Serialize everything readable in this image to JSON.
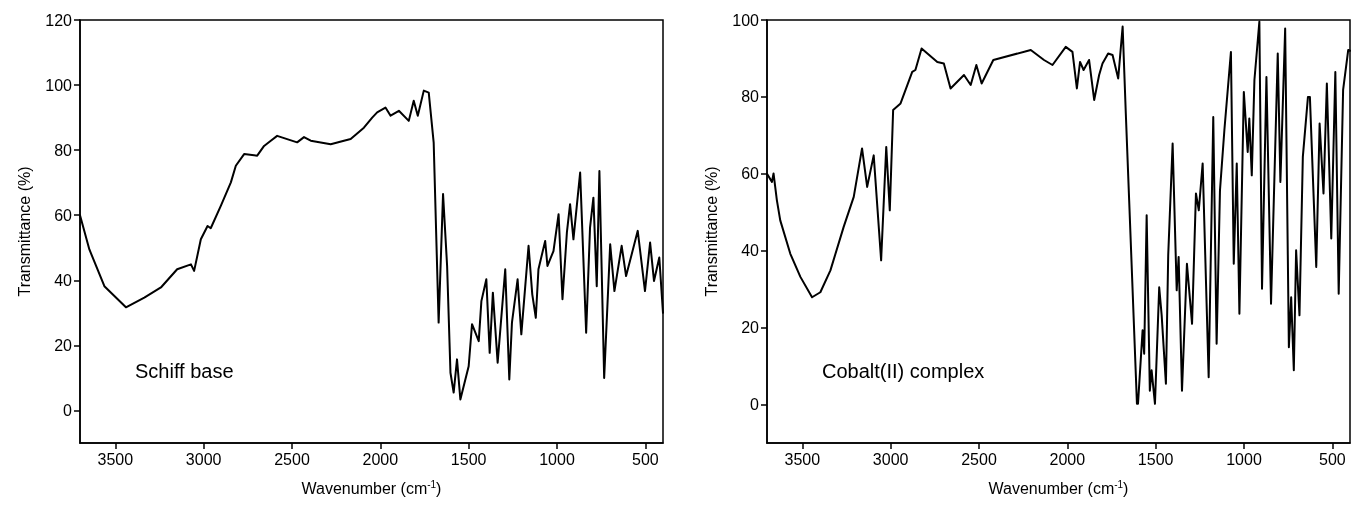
{
  "chart_data": [
    {
      "type": "line",
      "xlabel": "Wavenumber (cm$^{-1}$)",
      "ylabel": "Transmittance (%)",
      "annotations": [
        "Schiff base"
      ],
      "xlim": [
        3700,
        400
      ],
      "xticks": [
        3500,
        3000,
        2500,
        2000,
        1500,
        1000,
        500
      ],
      "ylim": [
        -10,
        120
      ],
      "yticks": [
        0,
        20,
        40,
        60,
        80,
        100,
        120
      ],
      "grid": false,
      "marker": "none",
      "line_style": "solid",
      "x": [
        3700,
        3647,
        3562,
        3440,
        3336,
        3242,
        3150,
        3072,
        3054,
        3016,
        2978,
        2960,
        2903,
        2846,
        2818,
        2771,
        2697,
        2658,
        2620,
        2584,
        2471,
        2432,
        2394,
        2281,
        2206,
        2168,
        2093,
        2046,
        2018,
        1971,
        1942,
        1895,
        1839,
        1811,
        1788,
        1754,
        1726,
        1698,
        1670,
        1645,
        1622,
        1603,
        1585,
        1566,
        1547,
        1500,
        1481,
        1443,
        1428,
        1400,
        1381,
        1363,
        1336,
        1293,
        1270,
        1255,
        1223,
        1202,
        1161,
        1140,
        1120,
        1105,
        1067,
        1054,
        1020,
        991,
        969,
        944,
        926,
        907,
        869,
        835,
        813,
        794,
        775,
        760,
        733,
        699,
        675,
        634,
        609,
        543,
        502,
        473,
        451,
        421,
        400
      ],
      "series": [
        {
          "color": "#000000",
          "values": [
            60,
            49.5,
            38.2,
            31.7,
            34.7,
            37.8,
            43.4,
            44.9,
            42.9,
            52.6,
            56.7,
            56,
            62.9,
            70.1,
            75.2,
            78.8,
            78.3,
            81.3,
            82.9,
            84.4,
            82.4,
            84,
            82.9,
            81.8,
            82.9,
            83.4,
            86.9,
            90,
            91.6,
            93.1,
            90.6,
            92.1,
            89,
            95.2,
            90.6,
            98.3,
            97.7,
            82.3,
            27,
            66.5,
            44.4,
            11.6,
            5.5,
            15.7,
            3.4,
            13.6,
            26.5,
            21.3,
            33.6,
            40.3,
            17.7,
            36.2,
            14.7,
            43.4,
            9.5,
            27,
            40.3,
            23.4,
            50.6,
            35.7,
            28.5,
            43.4,
            52.1,
            44.4,
            49,
            60.3,
            34.2,
            54.7,
            63.4,
            52.6,
            73.1,
            23.9,
            56.2,
            65.4,
            38.2,
            73.6,
            10,
            51.1,
            36.7,
            50.6,
            41.3,
            55.2,
            36.7,
            51.6,
            39.8,
            47,
            30
          ]
        }
      ]
    },
    {
      "type": "line",
      "xlabel": "Wavenumber (cm$^{-1}$)",
      "ylabel": "Transmittance (%)",
      "annotations": [
        "Cobalt(II) complex"
      ],
      "xlim": [
        3700,
        400
      ],
      "xticks": [
        3500,
        3000,
        2500,
        2000,
        1500,
        1000,
        500
      ],
      "ylim": [
        -10,
        100
      ],
      "yticks": [
        0,
        20,
        40,
        60,
        80,
        100
      ],
      "grid": false,
      "marker": "none",
      "line_style": "solid",
      "x": [
        3700,
        3672,
        3663,
        3644,
        3625,
        3568,
        3511,
        3445,
        3398,
        3341,
        3266,
        3209,
        3162,
        3133,
        3096,
        3054,
        3025,
        3005,
        2986,
        2944,
        2878,
        2860,
        2825,
        2736,
        2699,
        2661,
        2585,
        2547,
        2515,
        2485,
        2419,
        2207,
        2132,
        2084,
        2009,
        1971,
        1946,
        1928,
        1908,
        1877,
        1848,
        1820,
        1801,
        1769,
        1744,
        1712,
        1687,
        1669,
        1650,
        1606,
        1600,
        1574,
        1565,
        1551,
        1533,
        1523,
        1504,
        1480,
        1466,
        1442,
        1429,
        1404,
        1381,
        1370,
        1351,
        1323,
        1294,
        1272,
        1256,
        1234,
        1200,
        1174,
        1155,
        1136,
        1111,
        1074,
        1058,
        1041,
        1026,
        1001,
        979,
        970,
        956,
        941,
        913,
        898,
        873,
        847,
        809,
        794,
        767,
        746,
        733,
        718,
        705,
        686,
        667,
        638,
        627,
        591,
        572,
        550,
        531,
        506,
        483,
        464,
        439,
        410,
        400
      ],
      "series": [
        {
          "color": "#000000",
          "values": [
            60,
            57.9,
            60.1,
            53.1,
            47.9,
            39.2,
            33.2,
            27.9,
            29.2,
            34.9,
            46.2,
            54,
            66.6,
            56.6,
            64.8,
            37.5,
            67,
            50.5,
            76.6,
            78.3,
            86.5,
            87,
            92.6,
            89.1,
            88.7,
            82.2,
            85.7,
            83.1,
            88.3,
            83.5,
            89.6,
            92.2,
            89.6,
            88.3,
            93,
            91.7,
            82.2,
            89.1,
            87,
            89.6,
            79.2,
            85.7,
            88.7,
            91.3,
            90.9,
            84.8,
            98.3,
            75.7,
            53.1,
            0.2,
            0.2,
            19.3,
            13.2,
            49.2,
            3.6,
            8.9,
            0.2,
            30.5,
            23.2,
            5.4,
            38.8,
            67.9,
            29.7,
            38.4,
            3.6,
            36.6,
            21,
            54.9,
            50.5,
            62.7,
            7.1,
            74.8,
            15.8,
            55.7,
            71.4,
            91.7,
            36.6,
            62.7,
            23.6,
            81.3,
            65.7,
            74.4,
            59.6,
            84.4,
            99.6,
            30.1,
            85.2,
            26.2,
            91.3,
            57.9,
            97.8,
            14.9,
            27.9,
            8.9,
            40.1,
            23.2,
            64.4,
            80,
            80,
            35.8,
            73.1,
            54.9,
            83.5,
            43.2,
            86.5,
            28.8,
            81.8,
            92.2,
            92
          ]
        }
      ]
    }
  ]
}
